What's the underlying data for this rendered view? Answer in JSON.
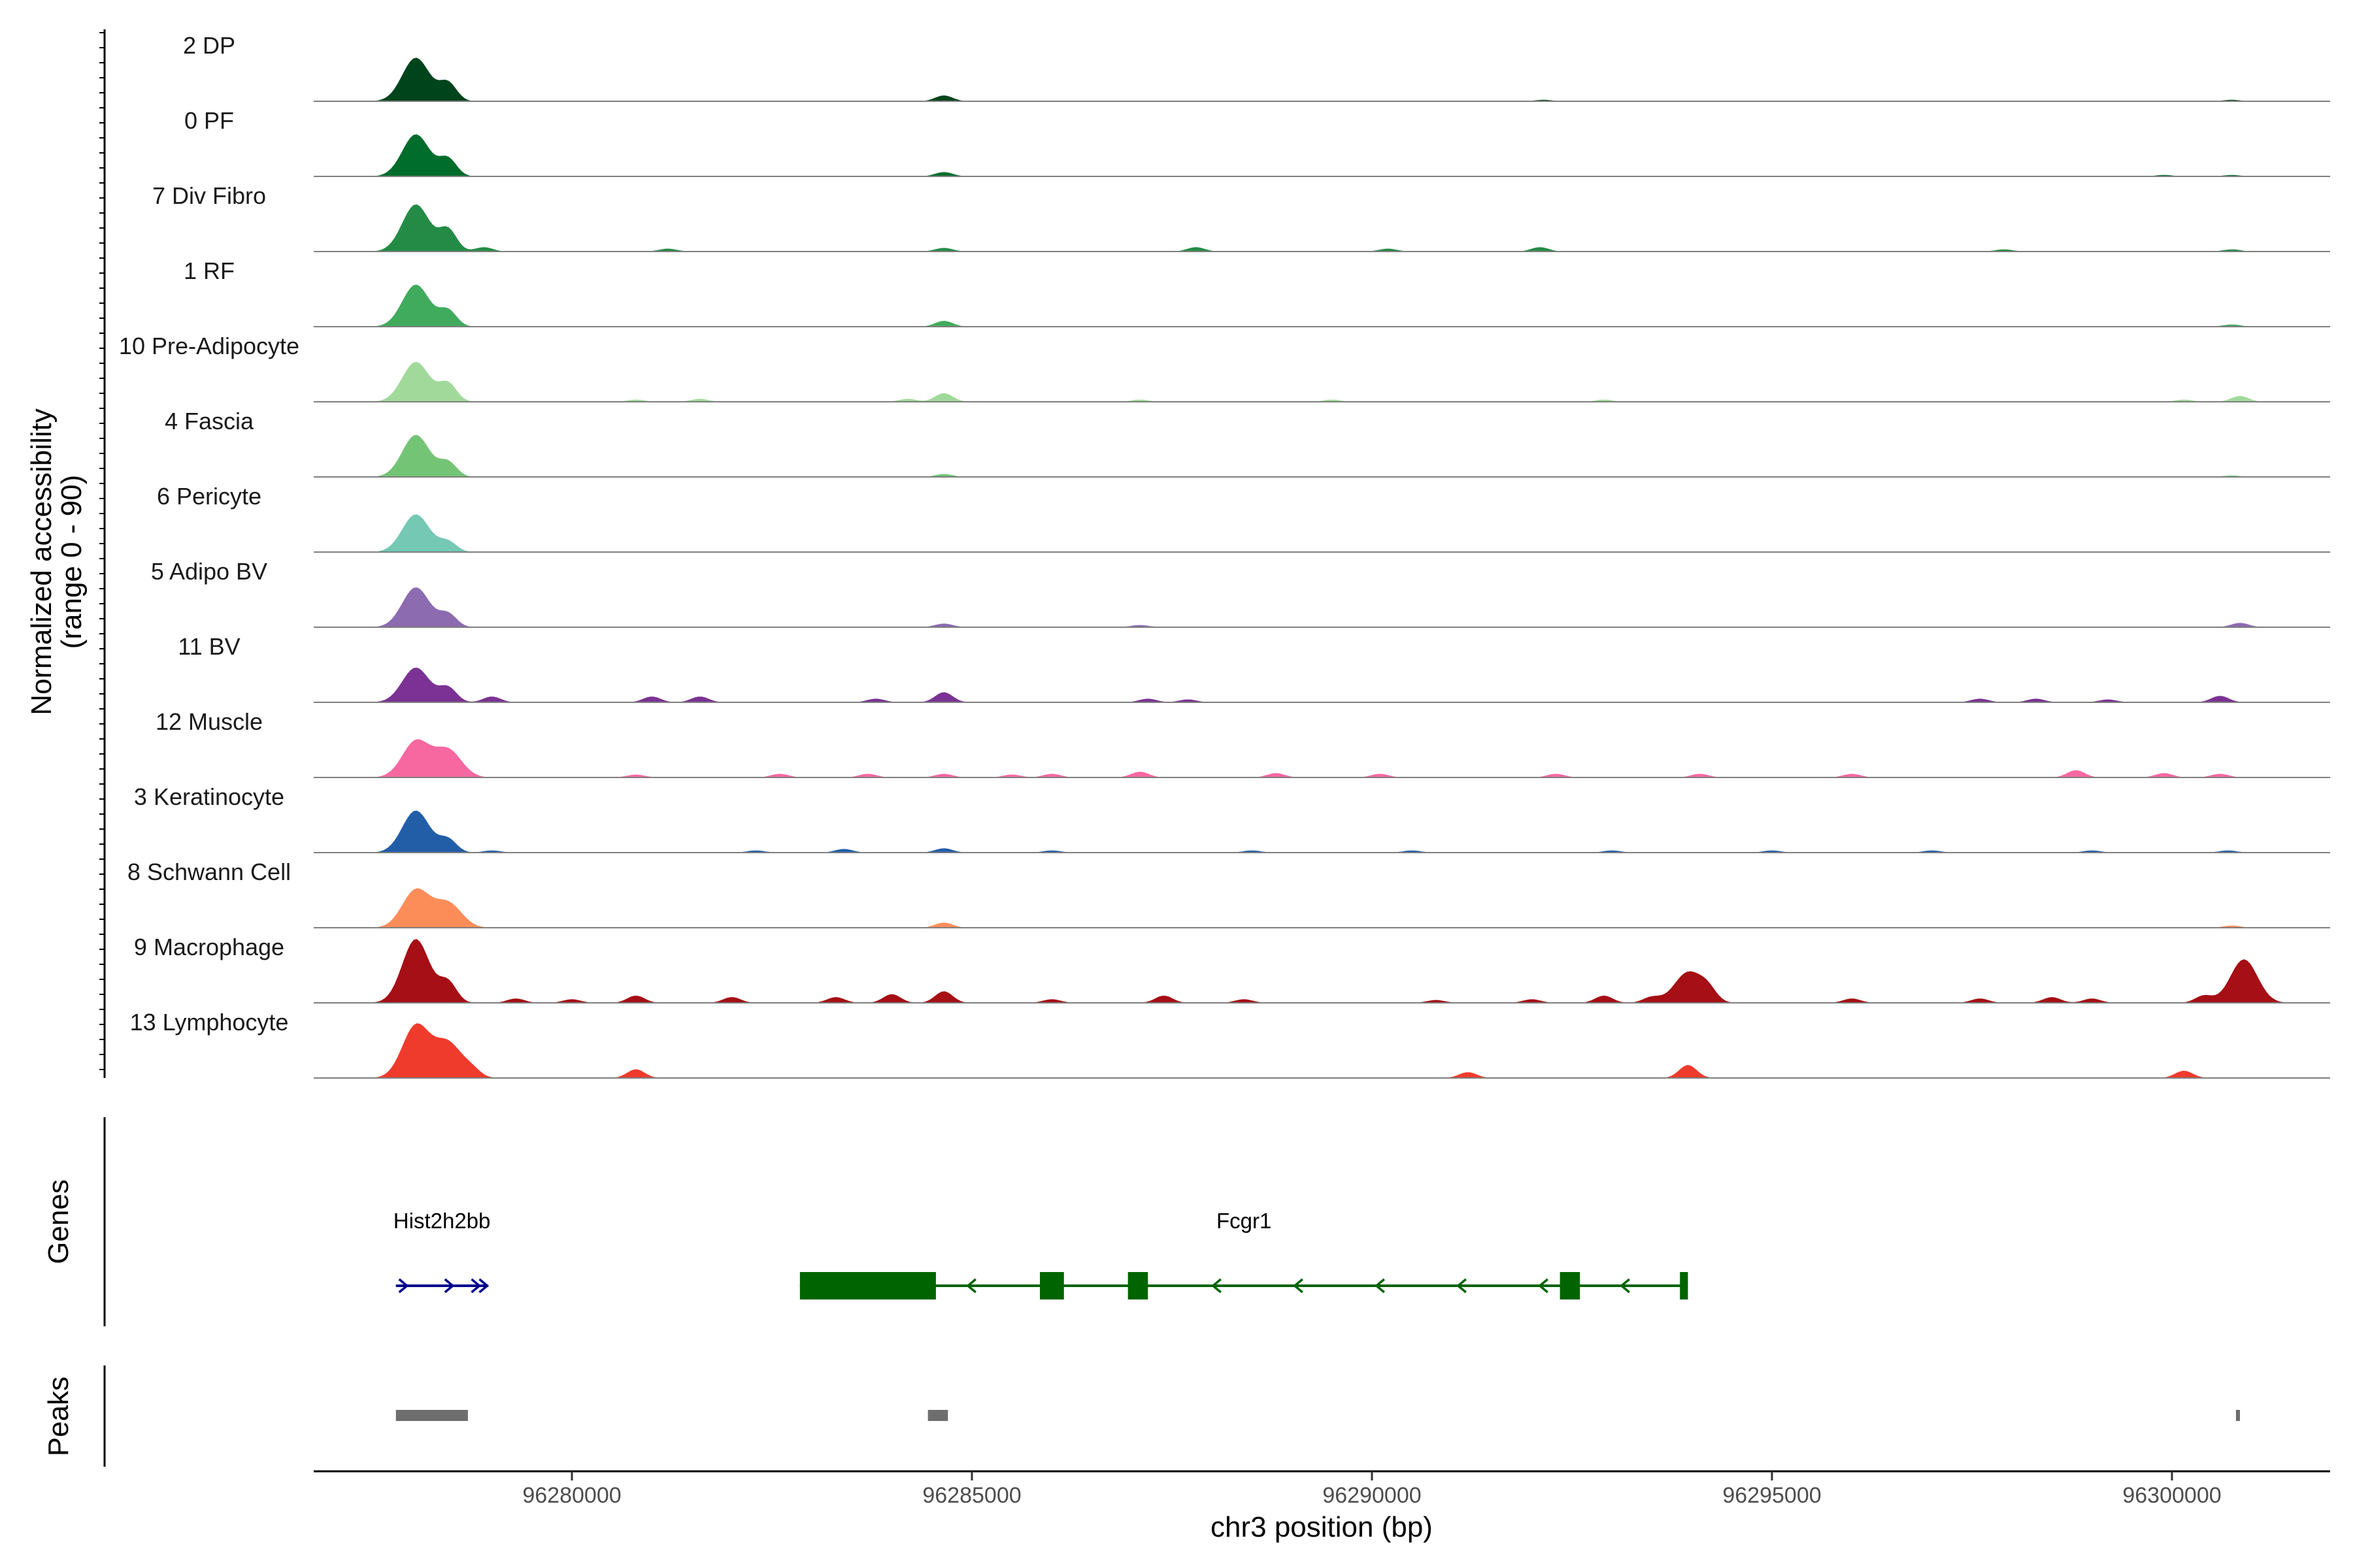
{
  "chart_data": {
    "type": "area",
    "title": "",
    "chromosome": "chr3",
    "xlabel": "chr3 position (bp)",
    "ylabel": "Normalized accessibility\n(range 0 - 90)",
    "ylim": [
      0,
      90
    ],
    "xlim": [
      96277500,
      96302200
    ],
    "xticks": [
      96280000,
      96285000,
      96290000,
      96295000,
      96300000
    ],
    "tick_labels": [
      "96280000",
      "96285000",
      "96290000",
      "96295000",
      "96300000"
    ],
    "genes_label": "Genes",
    "peaks_label": "Peaks",
    "series": [
      {
        "name": "2 DP",
        "color": "#00441b",
        "peaks": [
          [
            96278050,
            60
          ],
          [
            96278450,
            25
          ],
          [
            96284650,
            8
          ],
          [
            96292150,
            2
          ],
          [
            96300750,
            2
          ]
        ]
      },
      {
        "name": "0 PF",
        "color": "#006d2c",
        "peaks": [
          [
            96278050,
            58
          ],
          [
            96278450,
            24
          ],
          [
            96284650,
            6
          ],
          [
            96299900,
            2
          ],
          [
            96300750,
            2
          ]
        ]
      },
      {
        "name": "7 Div Fibro",
        "color": "#238b45",
        "peaks": [
          [
            96278050,
            65
          ],
          [
            96278450,
            30
          ],
          [
            96278900,
            6
          ],
          [
            96281200,
            4
          ],
          [
            96284650,
            5
          ],
          [
            96287800,
            6
          ],
          [
            96290200,
            4
          ],
          [
            96292100,
            6
          ],
          [
            96297900,
            3
          ],
          [
            96300750,
            3
          ]
        ]
      },
      {
        "name": "1 RF",
        "color": "#41ab5d",
        "peaks": [
          [
            96278050,
            58
          ],
          [
            96278450,
            22
          ],
          [
            96284650,
            8
          ],
          [
            96300750,
            3
          ]
        ]
      },
      {
        "name": "10 Pre-Adipocyte",
        "color": "#a1d99b",
        "peaks": [
          [
            96278050,
            55
          ],
          [
            96278450,
            25
          ],
          [
            96280800,
            3
          ],
          [
            96281600,
            4
          ],
          [
            96284200,
            4
          ],
          [
            96284650,
            12
          ],
          [
            96287100,
            3
          ],
          [
            96289500,
            3
          ],
          [
            96292900,
            3
          ],
          [
            96300150,
            3
          ],
          [
            96300850,
            8
          ]
        ]
      },
      {
        "name": "4 Fascia",
        "color": "#74c476",
        "peaks": [
          [
            96278050,
            58
          ],
          [
            96278450,
            20
          ],
          [
            96284650,
            4
          ],
          [
            96300750,
            2
          ]
        ]
      },
      {
        "name": "6 Pericyte",
        "color": "#74c8b4",
        "peaks": [
          [
            96278050,
            52
          ],
          [
            96278450,
            14
          ]
        ]
      },
      {
        "name": "5 Adipo BV",
        "color": "#8c6bb1",
        "peaks": [
          [
            96278050,
            55
          ],
          [
            96278450,
            18
          ],
          [
            96284650,
            5
          ],
          [
            96287100,
            3
          ],
          [
            96300850,
            6
          ]
        ]
      },
      {
        "name": "11 BV",
        "color": "#7b3294",
        "peaks": [
          [
            96278050,
            48
          ],
          [
            96278450,
            20
          ],
          [
            96279000,
            8
          ],
          [
            96281000,
            8
          ],
          [
            96281600,
            8
          ],
          [
            96284650,
            14
          ],
          [
            96283800,
            5
          ],
          [
            96287200,
            5
          ],
          [
            96287700,
            4
          ],
          [
            96297600,
            5
          ],
          [
            96298300,
            5
          ],
          [
            96299200,
            4
          ],
          [
            96300600,
            9
          ]
        ]
      },
      {
        "name": "12 Muscle",
        "color": "#f768a1",
        "peaks": [
          [
            96278050,
            50
          ],
          [
            96278450,
            38
          ],
          [
            96280800,
            4
          ],
          [
            96282600,
            5
          ],
          [
            96283700,
            5
          ],
          [
            96284650,
            5
          ],
          [
            96285500,
            4
          ],
          [
            96286000,
            5
          ],
          [
            96287100,
            8
          ],
          [
            96288800,
            6
          ],
          [
            96290100,
            5
          ],
          [
            96292300,
            5
          ],
          [
            96294100,
            5
          ],
          [
            96296000,
            5
          ],
          [
            96298800,
            10
          ],
          [
            96299900,
            6
          ],
          [
            96300600,
            5
          ]
        ]
      },
      {
        "name": "3 Keratinocyte",
        "color": "#225ea8",
        "peaks": [
          [
            96278050,
            58
          ],
          [
            96278450,
            18
          ],
          [
            96279000,
            3
          ],
          [
            96282300,
            3
          ],
          [
            96283400,
            5
          ],
          [
            96284650,
            6
          ],
          [
            96286000,
            3
          ],
          [
            96288500,
            3
          ],
          [
            96290500,
            3
          ],
          [
            96293000,
            3
          ],
          [
            96295000,
            3
          ],
          [
            96297000,
            3
          ],
          [
            96299000,
            3
          ],
          [
            96300700,
            3
          ]
        ]
      },
      {
        "name": "8 Schwann Cell",
        "color": "#fc8d59",
        "peaks": [
          [
            96278050,
            52
          ],
          [
            96278450,
            34
          ],
          [
            96284650,
            7
          ],
          [
            96300750,
            3
          ]
        ]
      },
      {
        "name": "9 Macrophage",
        "color": "#a50f15",
        "peaks": [
          [
            96278050,
            88
          ],
          [
            96278450,
            28
          ],
          [
            96279300,
            6
          ],
          [
            96280000,
            5
          ],
          [
            96280800,
            10
          ],
          [
            96282000,
            8
          ],
          [
            96283300,
            8
          ],
          [
            96284000,
            12
          ],
          [
            96284650,
            16
          ],
          [
            96286000,
            5
          ],
          [
            96287400,
            10
          ],
          [
            96288400,
            5
          ],
          [
            96290800,
            4
          ],
          [
            96292000,
            5
          ],
          [
            96292900,
            10
          ],
          [
            96293500,
            8
          ],
          [
            96293950,
            42
          ],
          [
            96294200,
            16
          ],
          [
            96296000,
            6
          ],
          [
            96297600,
            6
          ],
          [
            96298500,
            8
          ],
          [
            96299000,
            6
          ],
          [
            96300400,
            10
          ],
          [
            96300900,
            60
          ]
        ]
      },
      {
        "name": "13 Lymphocyte",
        "color": "#ef3b2c",
        "peaks": [
          [
            96278050,
            72
          ],
          [
            96278450,
            48
          ],
          [
            96278750,
            10
          ],
          [
            96280800,
            12
          ],
          [
            96291200,
            8
          ],
          [
            96293950,
            18
          ],
          [
            96300150,
            10
          ]
        ]
      }
    ],
    "genes": [
      {
        "name": "Hist2h2bb",
        "start": 96277800,
        "end": 96278950,
        "strand": "+",
        "color": "#00008b",
        "exons": []
      },
      {
        "name": "Fcgr1",
        "start": 96282850,
        "end": 96293950,
        "strand": "-",
        "color": "#006400",
        "exons": [
          [
            96282850,
            96284550
          ],
          [
            96285850,
            96286150
          ],
          [
            96286950,
            96287200
          ],
          [
            96292350,
            96292600
          ],
          [
            96293850,
            96293950
          ]
        ]
      }
    ],
    "peaks": [
      [
        96277800,
        96278700
      ],
      [
        96284450,
        96284700
      ],
      [
        96300800,
        96300850
      ]
    ]
  }
}
